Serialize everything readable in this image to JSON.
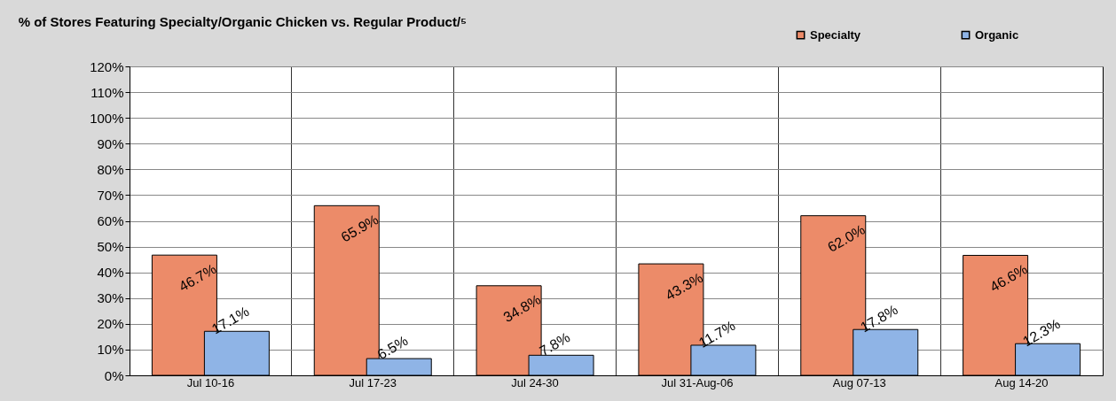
{
  "chart_data": {
    "type": "bar",
    "title": "% of Stores Featuring Specialty/Organic Chicken vs. Regular Product/⁵",
    "categories": [
      "Jul 10-16",
      "Jul 17-23",
      "Jul 24-30",
      "Jul 31-Aug-06",
      "Aug 07-13",
      "Aug 14-20"
    ],
    "series": [
      {
        "name": "Specialty",
        "color": "#ec8b69",
        "values": [
          46.7,
          65.9,
          34.8,
          43.3,
          62.0,
          46.6
        ],
        "value_labels": [
          "46.7%",
          "65.9%",
          "34.8%",
          "43.3%",
          "62.0%",
          "46.6%"
        ]
      },
      {
        "name": "Organic",
        "color": "#8fb4e6",
        "values": [
          17.1,
          6.5,
          7.8,
          11.7,
          17.8,
          12.3
        ],
        "value_labels": [
          "17.1%",
          "6.5%",
          "7.8%",
          "11.7%",
          "17.8%",
          "12.3%"
        ]
      }
    ],
    "ylim": [
      0,
      120
    ],
    "yticks": [
      {
        "value": 0,
        "label": "0%"
      },
      {
        "value": 10,
        "label": "10%"
      },
      {
        "value": 20,
        "label": "20%"
      },
      {
        "value": 30,
        "label": "30%"
      },
      {
        "value": 40,
        "label": "40%"
      },
      {
        "value": 50,
        "label": "50%"
      },
      {
        "value": 60,
        "label": "60%"
      },
      {
        "value": 70,
        "label": "70%"
      },
      {
        "value": 80,
        "label": "80%"
      },
      {
        "value": 90,
        "label": "90%"
      },
      {
        "value": 100,
        "label": "100%"
      },
      {
        "value": 110,
        "label": "110%"
      },
      {
        "value": 120,
        "label": "120%"
      }
    ],
    "grid": true,
    "legend": "top right"
  }
}
